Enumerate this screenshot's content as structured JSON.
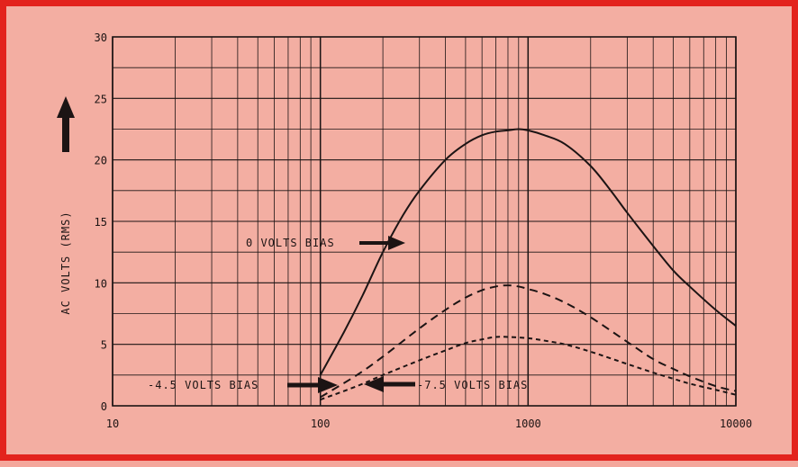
{
  "chart_data": {
    "type": "line",
    "title": "",
    "xlabel": "",
    "ylabel": "AC VOLTS (RMS)",
    "x_scale": "log",
    "xlim": [
      10,
      10000
    ],
    "ylim": [
      0,
      30
    ],
    "x_ticks": [
      "10",
      "100",
      "1000",
      "10000"
    ],
    "y_ticks": [
      "0",
      "5",
      "10",
      "15",
      "20",
      "25",
      "30"
    ],
    "grid": true,
    "series": [
      {
        "name": "0 VOLTS BIAS",
        "style": "solid",
        "x": [
          100,
          130,
          160,
          200,
          250,
          300,
          400,
          500,
          600,
          700,
          800,
          900,
          1000,
          1200,
          1500,
          2000,
          2500,
          3000,
          4000,
          5000,
          6000,
          8000,
          10000
        ],
        "y": [
          2.5,
          6,
          9,
          12.5,
          15.5,
          17.5,
          20,
          21.3,
          22,
          22.3,
          22.4,
          22.5,
          22.4,
          22,
          21.3,
          19.5,
          17.5,
          15.7,
          13,
          11,
          9.7,
          7.8,
          6.5
        ]
      },
      {
        "name": "-4.5 VOLTS BIAS",
        "style": "dashed",
        "x": [
          100,
          150,
          200,
          300,
          400,
          500,
          600,
          700,
          800,
          900,
          1000,
          1200,
          1500,
          2000,
          3000,
          4000,
          5000,
          6000,
          8000,
          10000
        ],
        "y": [
          0.7,
          2.5,
          4,
          6.3,
          7.8,
          8.8,
          9.4,
          9.7,
          9.8,
          9.7,
          9.5,
          9.1,
          8.4,
          7.2,
          5.2,
          3.8,
          3,
          2.4,
          1.6,
          1.2
        ]
      },
      {
        "name": "-7.5 VOLTS BIAS",
        "style": "dotted",
        "x": [
          100,
          150,
          200,
          300,
          400,
          500,
          600,
          700,
          800,
          1000,
          1200,
          1500,
          2000,
          3000,
          4000,
          5000,
          6000,
          8000,
          10000
        ],
        "y": [
          0.5,
          1.6,
          2.5,
          3.7,
          4.5,
          5.1,
          5.4,
          5.6,
          5.6,
          5.5,
          5.3,
          5,
          4.4,
          3.4,
          2.7,
          2.2,
          1.8,
          1.3,
          0.9
        ]
      }
    ],
    "annotations": [
      {
        "text": "0 VOLTS BIAS",
        "target": "0 VOLTS BIAS"
      },
      {
        "text": "-4.5 VOLTS BIAS",
        "target": "-4.5 VOLTS BIAS"
      },
      {
        "text": "-7.5 VOLTS BIAS",
        "target": "-7.5 VOLTS BIAS"
      }
    ]
  },
  "colors": {
    "border": "#e3231d",
    "paper": "#f3aea2",
    "ink": "#1c1414"
  }
}
